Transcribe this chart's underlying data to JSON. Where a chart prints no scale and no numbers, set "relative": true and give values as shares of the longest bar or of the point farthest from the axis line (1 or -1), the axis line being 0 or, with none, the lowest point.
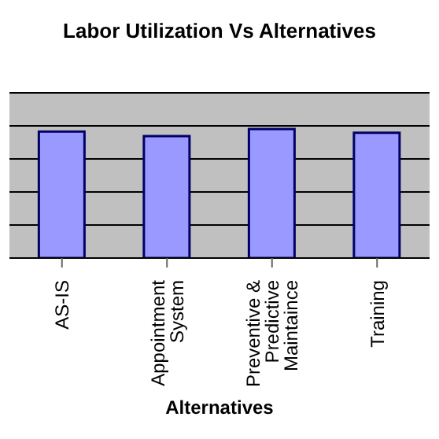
{
  "chart_data": {
    "type": "bar",
    "title": "Labor Utilization Vs Alternatives",
    "xlabel": "Alternatives",
    "categories": [
      "AS-IS",
      "Appointment System",
      "Preventive & Predictive Maintaince",
      "Training"
    ],
    "values": [
      0.98,
      0.945,
      1,
      0.97
    ],
    "color": "#9999ff",
    "relative": true,
    "grid": "y",
    "legend": false
  }
}
